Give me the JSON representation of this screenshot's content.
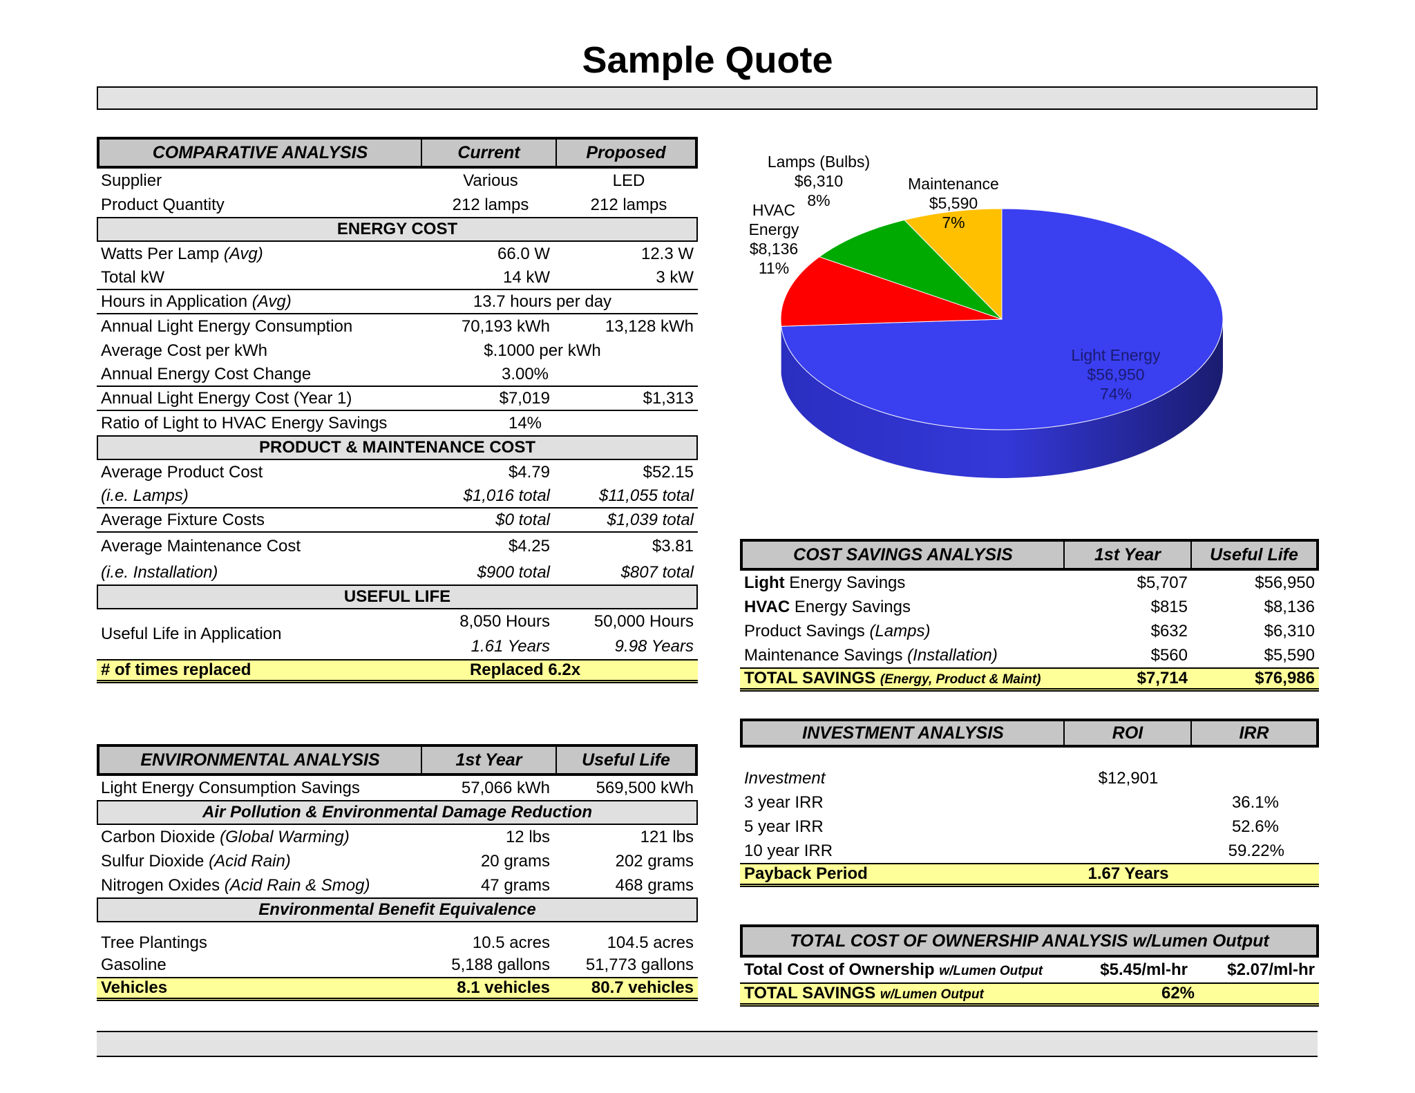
{
  "title": "Sample Quote",
  "comparative": {
    "header": {
      "label": "COMPARATIVE ANALYSIS",
      "current": "Current",
      "proposed": "Proposed"
    },
    "supplier": {
      "label": "Supplier",
      "current": "Various",
      "proposed": "LED"
    },
    "quantity": {
      "label": "Product Quantity",
      "current": "212 lamps",
      "proposed": "212 lamps"
    },
    "energy_cost_title": "ENERGY COST",
    "watts": {
      "label": "Watts Per Lamp",
      "label_note": "(Avg)",
      "current": "66.0 W",
      "proposed": "12.3 W"
    },
    "total_kw": {
      "label": "Total kW",
      "current": "14 kW",
      "proposed": "3 kW"
    },
    "hours": {
      "label": "Hours in Application",
      "label_note": "(Avg)",
      "value": "13.7 hours per day"
    },
    "consumption": {
      "label": "Annual Light Energy Consumption",
      "current": "70,193 kWh",
      "proposed": "13,128 kWh"
    },
    "avg_cost_kwh": {
      "label": "Average Cost per kWh",
      "value": "$.1000 per kWh"
    },
    "energy_change": {
      "label": "Annual Energy Cost Change",
      "value": "3.00%"
    },
    "light_cost": {
      "label": "Annual Light Energy Cost (Year 1)",
      "current": "$7,019",
      "proposed": "$1,313"
    },
    "ratio": {
      "label": "Ratio of Light to HVAC Energy Savings",
      "value": "14%"
    },
    "product_title": "PRODUCT & MAINTENANCE COST",
    "product_cost": {
      "label": "Average Product Cost",
      "current": "$4.79",
      "proposed": "$52.15"
    },
    "lamps": {
      "label": "(i.e. Lamps)",
      "current": "$1,016 total",
      "proposed": "$11,055 total"
    },
    "fixture": {
      "label": "Average Fixture Costs",
      "current": "$0 total",
      "proposed": "$1,039 total"
    },
    "maintenance": {
      "label": "Average Maintenance Cost",
      "current": "$4.25",
      "proposed": "$3.81"
    },
    "install": {
      "label": "(i.e. Installation)",
      "current": "$900 total",
      "proposed": "$807 total"
    },
    "useful_title": "USEFUL LIFE",
    "useful": {
      "label": "Useful Life in Application",
      "current_hours": "8,050 Hours",
      "proposed_hours": "50,000 Hours",
      "current_years": "1.61 Years",
      "proposed_years": "9.98 Years"
    },
    "replaced": {
      "label": "# of times replaced",
      "value": "Replaced 6.2x"
    }
  },
  "environmental": {
    "header": {
      "label": "ENVIRONMENTAL ANALYSIS",
      "first": "1st Year",
      "life": "Useful Life"
    },
    "savings": {
      "label": "Light Energy Consumption Savings",
      "first": "57,066 kWh",
      "life": "569,500 kWh"
    },
    "air_title": "Air Pollution & Environmental Damage Reduction",
    "co2": {
      "label": "Carbon Dioxide",
      "label_note": "(Global Warming)",
      "first": "12 lbs",
      "life": "121 lbs"
    },
    "so2": {
      "label": "Sulfur Dioxide",
      "label_note": "(Acid Rain)",
      "first": "20 grams",
      "life": "202 grams"
    },
    "nox": {
      "label": "Nitrogen Oxides",
      "label_note": "(Acid Rain & Smog)",
      "first": "47 grams",
      "life": "468 grams"
    },
    "benefit_title": "Environmental Benefit Equivalence",
    "trees": {
      "label": "Tree Plantings",
      "first": "10.5 acres",
      "life": "104.5 acres"
    },
    "gas": {
      "label": "Gasoline",
      "first": "5,188 gallons",
      "life": "51,773 gallons"
    },
    "vehicles": {
      "label": "Vehicles",
      "first": "8.1 vehicles",
      "life": "80.7 vehicles"
    }
  },
  "cost_savings": {
    "header": {
      "label": "COST SAVINGS ANALYSIS",
      "first": "1st Year",
      "life": "Useful Life"
    },
    "light": {
      "bold": "Light",
      "label": " Energy Savings",
      "first": "$5,707",
      "life": "$56,950"
    },
    "hvac": {
      "bold": "HVAC",
      "label": " Energy Savings",
      "first": "$815",
      "life": "$8,136"
    },
    "product": {
      "label": "Product Savings ",
      "note": "(Lamps)",
      "first": "$632",
      "life": "$6,310"
    },
    "maint": {
      "label": "Maintenance Savings ",
      "note": "(Installation)",
      "first": "$560",
      "life": "$5,590"
    },
    "total": {
      "label": "TOTAL SAVINGS ",
      "note": "(Energy, Product & Maint)",
      "first": "$7,714",
      "life": "$76,986"
    }
  },
  "investment": {
    "header": {
      "label": "INVESTMENT ANALYSIS",
      "roi": "ROI",
      "irr": "IRR"
    },
    "investment": {
      "label": "Investment",
      "value": "$12,901"
    },
    "irr3": {
      "label": "3 year IRR",
      "value": "36.1%"
    },
    "irr5": {
      "label": "5 year IRR",
      "value": "52.6%"
    },
    "irr10": {
      "label": "10 year IRR",
      "value": "59.22%"
    },
    "payback": {
      "label": "Payback Period",
      "value": "1.67 Years"
    }
  },
  "tco": {
    "header": "TOTAL COST OF OWNERSHIP ANALYSIS w/Lumen Output",
    "total": {
      "label": "Total Cost of Ownership ",
      "note": "w/Lumen Output",
      "current": "$5.45/ml-hr",
      "proposed": "$2.07/ml-hr"
    },
    "savings": {
      "label": "TOTAL SAVINGS ",
      "note": "w/Lumen Output",
      "value": "62%"
    }
  },
  "chart_data": {
    "type": "pie",
    "title": "",
    "slices": [
      {
        "label": "Light Energy",
        "value": 56950,
        "display": "$56,950",
        "percent": "74%",
        "color": "#3a3ff0"
      },
      {
        "label": "HVAC Energy",
        "label_lines": [
          "HVAC",
          "Energy"
        ],
        "value": 8136,
        "display": "$8,136",
        "percent": "11%",
        "color": "#ff0000"
      },
      {
        "label": "Lamps (Bulbs)",
        "value": 6310,
        "display": "$6,310",
        "percent": "8%",
        "color": "#00aa00"
      },
      {
        "label": "Maintenance",
        "value": 5590,
        "display": "$5,590",
        "percent": "7%",
        "color": "#ffc000"
      }
    ]
  }
}
